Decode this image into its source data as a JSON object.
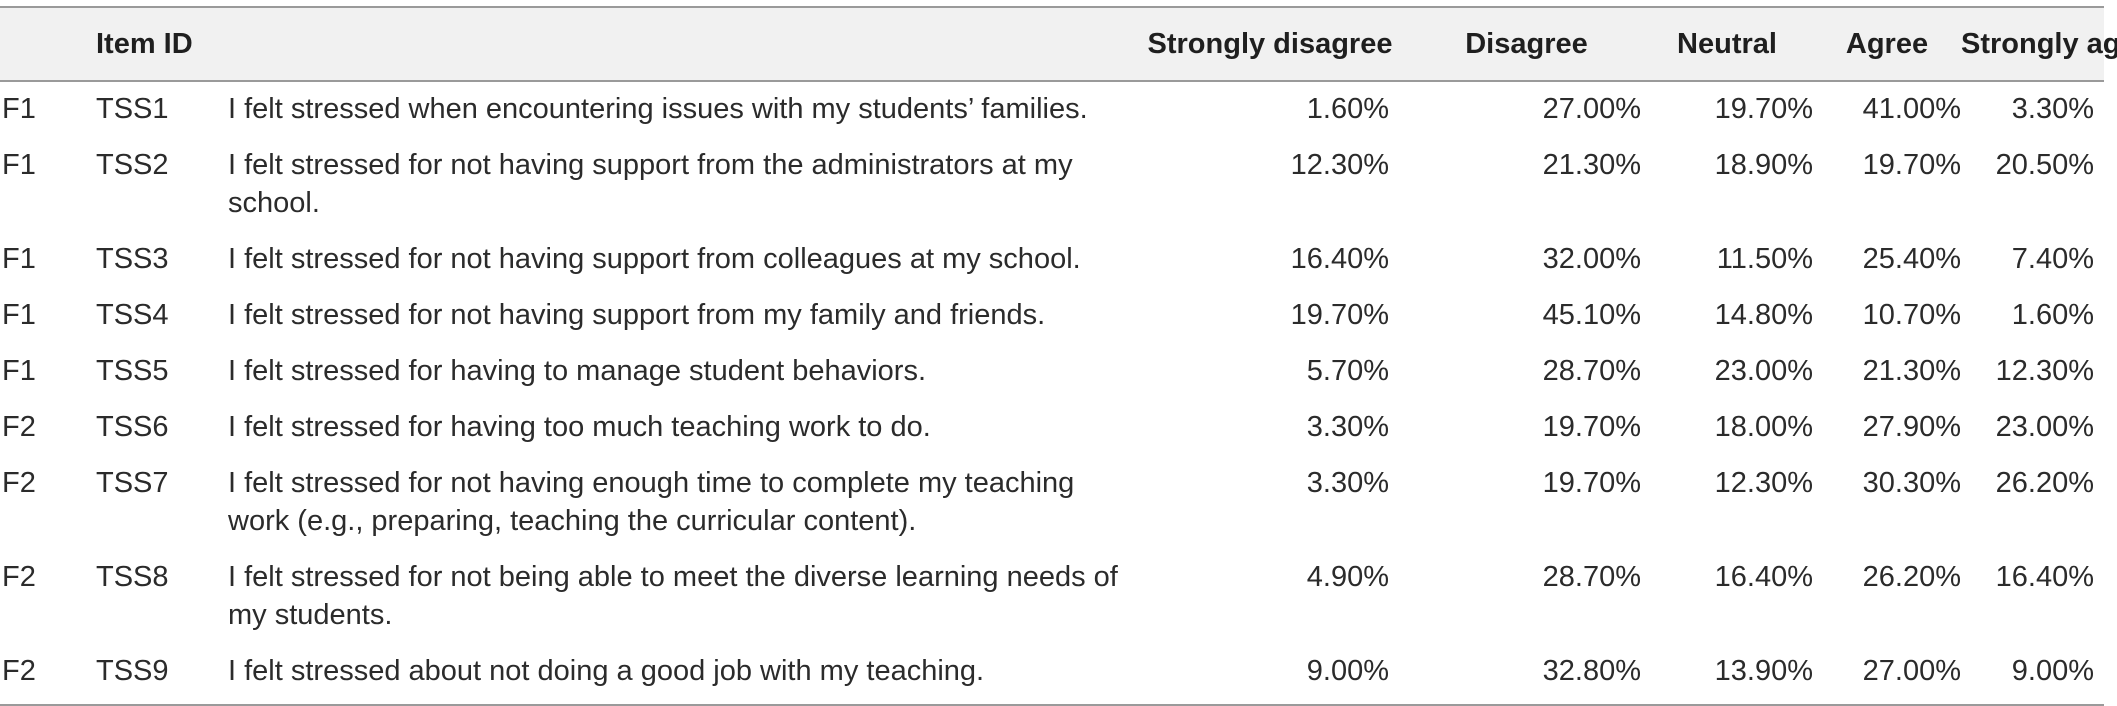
{
  "table": {
    "headers": {
      "factor": "",
      "item_id": "Item ID",
      "item_text": "",
      "strongly_disagree": "Strongly disagree",
      "disagree": "Disagree",
      "neutral": "Neutral",
      "agree": "Agree",
      "strongly_agree": "Strongly agree"
    },
    "rows": [
      {
        "factor": "F1",
        "id": "TSS1",
        "text": "I felt stressed when encountering issues with my students’ families.",
        "strongly_disagree": "1.60%",
        "disagree": "27.00%",
        "neutral": "19.70%",
        "agree": "41.00%",
        "strongly_agree": "3.30%"
      },
      {
        "factor": "F1",
        "id": "TSS2",
        "text": "I felt stressed for not having support from the administrators at my school.",
        "strongly_disagree": "12.30%",
        "disagree": "21.30%",
        "neutral": "18.90%",
        "agree": "19.70%",
        "strongly_agree": "20.50%"
      },
      {
        "factor": "F1",
        "id": "TSS3",
        "text": "I felt stressed for not having support from colleagues at my school.",
        "strongly_disagree": "16.40%",
        "disagree": "32.00%",
        "neutral": "11.50%",
        "agree": "25.40%",
        "strongly_agree": "7.40%"
      },
      {
        "factor": "F1",
        "id": "TSS4",
        "text": "I felt stressed for not having support from my family and friends.",
        "strongly_disagree": "19.70%",
        "disagree": "45.10%",
        "neutral": "14.80%",
        "agree": "10.70%",
        "strongly_agree": "1.60%"
      },
      {
        "factor": "F1",
        "id": "TSS5",
        "text": "I felt stressed for having to manage student behaviors.",
        "strongly_disagree": "5.70%",
        "disagree": "28.70%",
        "neutral": "23.00%",
        "agree": "21.30%",
        "strongly_agree": "12.30%"
      },
      {
        "factor": "F2",
        "id": "TSS6",
        "text": "I felt stressed for having too much teaching work to do.",
        "strongly_disagree": "3.30%",
        "disagree": "19.70%",
        "neutral": "18.00%",
        "agree": "27.90%",
        "strongly_agree": "23.00%"
      },
      {
        "factor": "F2",
        "id": "TSS7",
        "text": "I felt stressed for not having enough time to complete my teaching work (e.g., preparing, teaching the curricular content).",
        "strongly_disagree": "3.30%",
        "disagree": "19.70%",
        "neutral": "12.30%",
        "agree": "30.30%",
        "strongly_agree": "26.20%"
      },
      {
        "factor": "F2",
        "id": "TSS8",
        "text": "I felt stressed for not being able to meet the diverse learning needs of my students.",
        "strongly_disagree": "4.90%",
        "disagree": "28.70%",
        "neutral": "16.40%",
        "agree": "26.20%",
        "strongly_agree": "16.40%"
      },
      {
        "factor": "F2",
        "id": "TSS9",
        "text": "I felt stressed about not doing a good job with my teaching.",
        "strongly_disagree": "9.00%",
        "disagree": "32.80%",
        "neutral": "13.90%",
        "agree": "27.00%",
        "strongly_agree": "9.00%"
      }
    ]
  }
}
